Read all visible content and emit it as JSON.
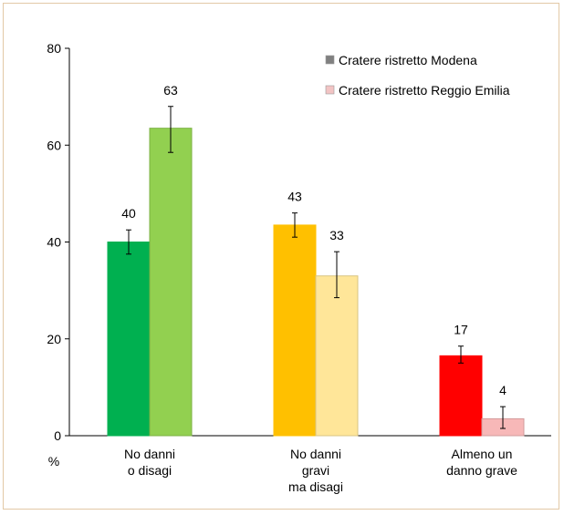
{
  "chart_data": {
    "type": "bar",
    "title": "",
    "xlabel": "",
    "ylabel": "%",
    "ylim": [
      0,
      80
    ],
    "yticks": [
      0,
      20,
      40,
      60,
      80
    ],
    "grid": false,
    "legend_position": "top-right",
    "categories": [
      {
        "lines": [
          "No danni",
          "o disagi"
        ]
      },
      {
        "lines": [
          "No danni",
          "gravi",
          "ma disagi"
        ]
      },
      {
        "lines": [
          "Almeno un",
          "danno grave"
        ]
      }
    ],
    "series": [
      {
        "name": "Cratere ristretto Modena",
        "legend_color": "#808080",
        "values": [
          40,
          43,
          17
        ],
        "bar_values": [
          40,
          43.5,
          16.5
        ],
        "error_low": [
          37.5,
          41,
          15
        ],
        "error_high": [
          42.5,
          46,
          18.5
        ],
        "colors": [
          "#00b050",
          "#ffc000",
          "#ff0000"
        ]
      },
      {
        "name": "Cratere ristretto Reggio Emilia",
        "legend_color": "#f2c4c4",
        "values": [
          63,
          33,
          4
        ],
        "bar_values": [
          63.5,
          33,
          3.5
        ],
        "error_low": [
          58.5,
          28.5,
          1.5
        ],
        "error_high": [
          68,
          38,
          6
        ],
        "colors": [
          "#92d050",
          "#ffe699",
          "#f7b8b8"
        ]
      }
    ]
  }
}
